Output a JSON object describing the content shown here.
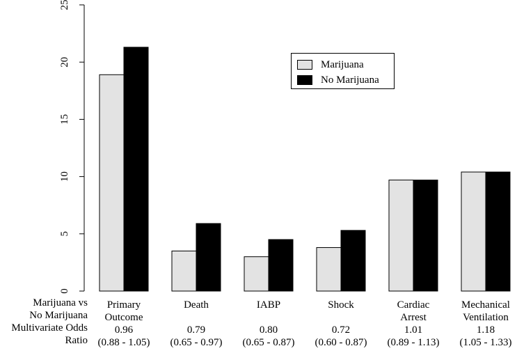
{
  "chart_data": {
    "type": "bar",
    "categories": [
      [
        "Primary",
        "Outcome"
      ],
      [
        "Death"
      ],
      [
        "IABP"
      ],
      [
        "Shock"
      ],
      [
        "Cardiac",
        "Arrest"
      ],
      [
        "Mechanical",
        "Ventilation"
      ]
    ],
    "series": [
      {
        "name": "Marijuana",
        "color": "#e3e3e3",
        "values": [
          18.9,
          3.5,
          3.0,
          3.8,
          9.7,
          10.4
        ]
      },
      {
        "name": "No Marijuana",
        "color": "#000000",
        "values": [
          21.3,
          5.9,
          4.5,
          5.3,
          9.7,
          10.4
        ]
      }
    ],
    "odds_ratios": [
      {
        "value": "0.96",
        "ci": "(0.88 - 1.05)"
      },
      {
        "value": "0.79",
        "ci": "(0.65 - 0.97)"
      },
      {
        "value": "0.80",
        "ci": "(0.65 - 0.87)"
      },
      {
        "value": "0.72",
        "ci": "(0.60 - 0.87)"
      },
      {
        "value": "1.01",
        "ci": "(0.89 - 1.13)"
      },
      {
        "value": "1.18",
        "ci": "(1.05 - 1.33)"
      }
    ],
    "row_label": [
      "Marijuana vs",
      "No Marijuana",
      "Multivariate Odds",
      "Ratio"
    ],
    "yticks": [
      0,
      5,
      10,
      15,
      20,
      25
    ],
    "ylim": [
      0,
      25
    ],
    "title": "",
    "xlabel": "",
    "ylabel": "",
    "legend_position": "top-right",
    "grid": false
  }
}
